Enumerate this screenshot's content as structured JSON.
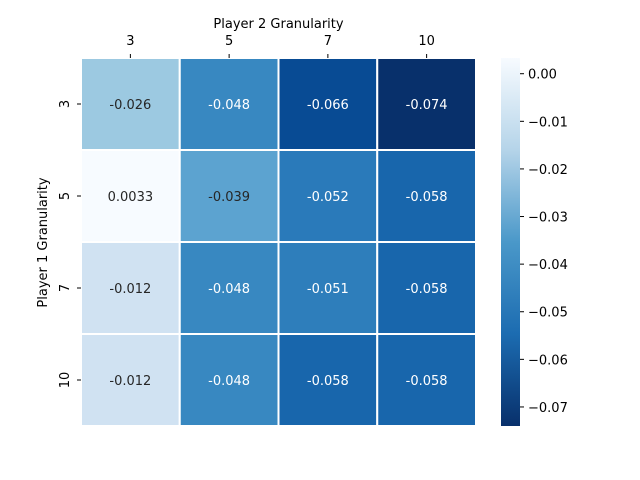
{
  "chart_data": {
    "type": "heatmap",
    "title": "",
    "xlabel": "Player 2 Granularity",
    "ylabel": "Player 1 Granularity",
    "x_categories": [
      "3",
      "5",
      "7",
      "10"
    ],
    "y_categories": [
      "3",
      "5",
      "7",
      "10"
    ],
    "x_axis_position": "top",
    "values": [
      [
        -0.026,
        -0.048,
        -0.066,
        -0.074
      ],
      [
        0.0033,
        -0.039,
        -0.052,
        -0.058
      ],
      [
        -0.012,
        -0.048,
        -0.051,
        -0.058
      ],
      [
        -0.012,
        -0.048,
        -0.058,
        -0.058
      ]
    ],
    "annotations": [
      [
        "-0.026",
        "-0.048",
        "-0.066",
        "-0.074"
      ],
      [
        "0.0033",
        "-0.039",
        "-0.052",
        "-0.058"
      ],
      [
        "-0.012",
        "-0.048",
        "-0.051",
        "-0.058"
      ],
      [
        "-0.012",
        "-0.048",
        "-0.058",
        "-0.058"
      ]
    ],
    "colormap": "Blues_r",
    "value_range": [
      -0.074,
      0.0033
    ],
    "colorbar": {
      "position": "right",
      "ticks": [
        0.0,
        -0.01,
        -0.02,
        -0.03,
        -0.04,
        -0.05,
        -0.06,
        -0.07
      ],
      "tick_labels": [
        "0.00",
        "−0.01",
        "−0.02",
        "−0.03",
        "−0.04",
        "−0.05",
        "−0.06",
        "−0.07"
      ]
    },
    "cell_borders": "white",
    "grid": false
  }
}
